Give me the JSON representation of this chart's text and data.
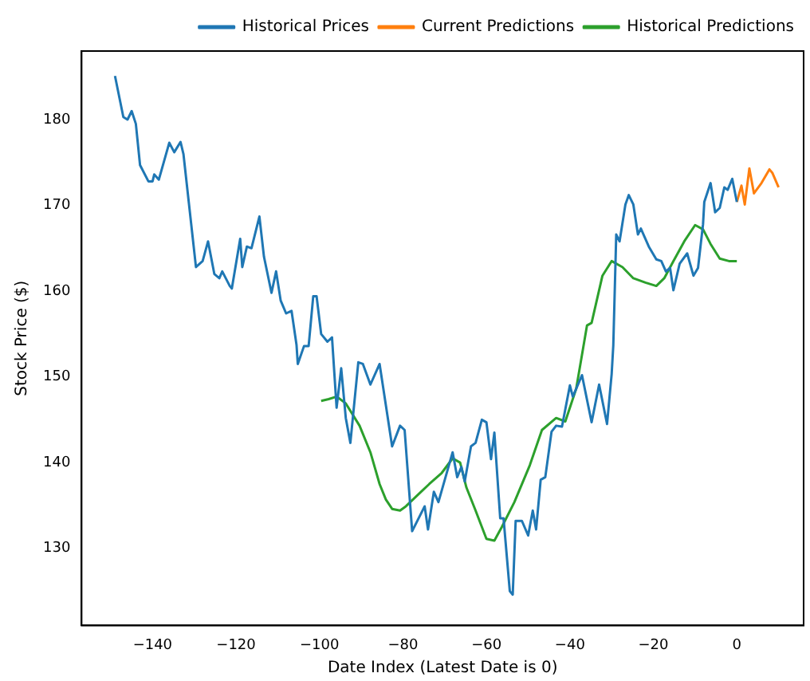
{
  "chart_data": {
    "type": "line",
    "xlabel": "Date Index (Latest Date is 0)",
    "ylabel": "Stock Price ($)",
    "xlim": [
      -157,
      16
    ],
    "ylim": [
      121,
      188
    ],
    "xticks": [
      -140,
      -120,
      -100,
      -80,
      -60,
      -40,
      -20,
      0
    ],
    "yticks": [
      130,
      140,
      150,
      160,
      170,
      180
    ],
    "grid": false,
    "legend": "top right",
    "marker": "none",
    "line_style": "solid",
    "series": [
      {
        "name": "Historical Prices",
        "color": "#1f77b4",
        "x": [
          -149,
          -147,
          -146,
          -145,
          -144,
          -143,
          -141,
          -140,
          -139.6,
          -138.5,
          -136,
          -134.8,
          -133.3,
          -132.6,
          -129.6,
          -128,
          -126.7,
          -125.2,
          -124,
          -123.3,
          -121.5,
          -121,
          -119,
          -118.5,
          -117.4,
          -116.3,
          -114.4,
          -113.3,
          -111.5,
          -110.4,
          -109.3,
          -108,
          -106.7,
          -105.5,
          -105.2,
          -103.7,
          -102.6,
          -101.5,
          -100.7,
          -99.6,
          -98.1,
          -97,
          -95.9,
          -94.8,
          -93.7,
          -92.6,
          -90.7,
          -89.6,
          -87.8,
          -85.6,
          -82.6,
          -80.7,
          -79.6,
          -77.8,
          -74.8,
          -74,
          -72.6,
          -71.5,
          -68.1,
          -67,
          -66,
          -65.2,
          -63.7,
          -62.6,
          -61.1,
          -60,
          -58.9,
          -58.1,
          -56.7,
          -55.9,
          -54.4,
          -53.7,
          -53,
          -51.5,
          -50,
          -48.9,
          -48.1,
          -47,
          -45.9,
          -44.4,
          -43.3,
          -41.9,
          -40,
          -39.3,
          -37.1,
          -34.8,
          -33,
          -31.1,
          -30,
          -29.6,
          -28.9,
          -28.1,
          -26.7,
          -25.9,
          -24.8,
          -23.7,
          -23,
          -21.1,
          -19.3,
          -18.1,
          -17,
          -16,
          -15.2,
          -13.7,
          -11.9,
          -10.4,
          -9.3,
          -8.1,
          -7.8,
          -6.3,
          -5.2,
          -4.1,
          -3,
          -2.2,
          -1.1,
          0
        ],
        "values": [
          185.1,
          180.3,
          180,
          181,
          179.5,
          174.7,
          172.8,
          172.8,
          173.6,
          173,
          177.3,
          176.2,
          177.4,
          176,
          162.8,
          163.5,
          165.8,
          162,
          161.5,
          162.3,
          160.6,
          160.3,
          166.1,
          162.8,
          165.2,
          165,
          168.7,
          164,
          159.8,
          162.3,
          158.9,
          157.4,
          157.7,
          153.7,
          151.5,
          153.6,
          153.6,
          159.4,
          159.4,
          155,
          154.1,
          154.6,
          146.4,
          151,
          145.2,
          142.3,
          151.7,
          151.5,
          149.1,
          151.5,
          141.9,
          144.3,
          143.8,
          132,
          134.9,
          132.2,
          136.6,
          135.4,
          141.2,
          138.3,
          139.5,
          137.8,
          141.9,
          142.3,
          145,
          144.7,
          140.4,
          143.5,
          133.5,
          133.5,
          125,
          124.6,
          133.2,
          133.2,
          131.5,
          134.4,
          132.2,
          138,
          138.3,
          143.6,
          144.3,
          144.2,
          149,
          147.7,
          150.2,
          144.7,
          149.1,
          144.5,
          150.3,
          153.7,
          166.6,
          165.8,
          170.1,
          171.2,
          170.1,
          166.6,
          167.3,
          165.2,
          163.7,
          163.5,
          162.3,
          162.7,
          160.1,
          163.2,
          164.4,
          161.8,
          162.7,
          167.8,
          170.4,
          172.6,
          169.2,
          169.7,
          172.1,
          171.8,
          173.1,
          170.4
        ]
      },
      {
        "name": "Current Predictions",
        "color": "#ff7f0e",
        "x": [
          0,
          1.1,
          1.9,
          3,
          4.1,
          5.9,
          7.8,
          8.5,
          10
        ],
        "values": [
          170.4,
          172.3,
          170.1,
          174.3,
          171.4,
          172.6,
          174.2,
          173.8,
          172.1
        ]
      },
      {
        "name": "Historical Predictions",
        "color": "#2ca02c",
        "x": [
          -99.6,
          -97.8,
          -95.9,
          -93.7,
          -90.4,
          -87.8,
          -85.6,
          -84.1,
          -82.6,
          -80.7,
          -79.3,
          -76.3,
          -73.7,
          -70.7,
          -68.1,
          -66.3,
          -64.8,
          -62.6,
          -60,
          -58.1,
          -56.3,
          -53.3,
          -49.6,
          -46.7,
          -43.3,
          -41.1,
          -38.5,
          -35.9,
          -34.8,
          -32.2,
          -30,
          -27.4,
          -24.8,
          -21.9,
          -19.3,
          -17.4,
          -15.2,
          -12.6,
          -10,
          -8.1,
          -6.3,
          -4.1,
          -1.9,
          0
        ],
        "values": [
          147.2,
          147.4,
          147.7,
          146.9,
          144.3,
          141.2,
          137.5,
          135.7,
          134.6,
          134.4,
          134.9,
          136.3,
          137.5,
          138.8,
          140.5,
          140,
          137.1,
          134.4,
          131.1,
          130.9,
          132.5,
          135.4,
          139.7,
          143.8,
          145.2,
          144.8,
          148.6,
          156,
          156.3,
          161.8,
          163.5,
          162.8,
          161.5,
          161,
          160.6,
          161.5,
          163.5,
          165.8,
          167.7,
          167.2,
          165.5,
          163.8,
          163.5,
          163.5
        ]
      }
    ]
  }
}
